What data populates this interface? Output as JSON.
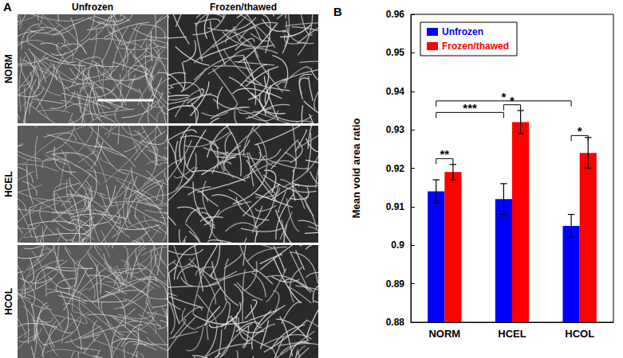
{
  "panel_a": {
    "label": "A",
    "column_titles": [
      "Unfrozen",
      "Frozen/thawed"
    ],
    "row_titles": [
      "NORM",
      "HCEL",
      "HCOL"
    ]
  },
  "chart_data": {
    "panel_label": "B",
    "type": "bar",
    "y_label": "Mean void area ratio",
    "categories": [
      "NORM",
      "HCEL",
      "HCOL"
    ],
    "series": [
      {
        "name": "Unfrozen",
        "color": "#0000ff",
        "values": [
          0.914,
          0.912,
          0.905
        ],
        "errors": [
          0.003,
          0.004,
          0.003
        ]
      },
      {
        "name": "Frozen/thawed",
        "color": "#ff0000",
        "values": [
          0.919,
          0.932,
          0.924
        ],
        "errors": [
          0.002,
          0.003,
          0.004
        ]
      }
    ],
    "ylim": [
      0.88,
      0.96
    ],
    "yticks": [
      0.88,
      0.89,
      0.9,
      0.91,
      0.92,
      0.93,
      0.94,
      0.95,
      0.96
    ],
    "grid": false,
    "legend": "upper left",
    "annotations": [
      {
        "text": "**",
        "from": [
          "NORM",
          "Unfrozen"
        ],
        "to": [
          "NORM",
          "Frozen/thawed"
        ],
        "y": 0.9225
      },
      {
        "text": "***",
        "from": [
          "NORM",
          "Unfrozen"
        ],
        "to": [
          "HCEL",
          "Unfrozen"
        ],
        "y": 0.9345
      },
      {
        "text": "*",
        "from": [
          "NORM",
          "Unfrozen"
        ],
        "to": [
          "HCOL",
          "Unfrozen"
        ],
        "y": 0.9375
      },
      {
        "text": "*",
        "from": [
          "HCEL",
          "Unfrozen"
        ],
        "to": [
          "HCEL",
          "Frozen/thawed"
        ],
        "y": 0.9365
      },
      {
        "text": "*",
        "from": [
          "HCOL",
          "Unfrozen"
        ],
        "to": [
          "HCOL",
          "Frozen/thawed"
        ],
        "y": 0.9285
      }
    ]
  }
}
